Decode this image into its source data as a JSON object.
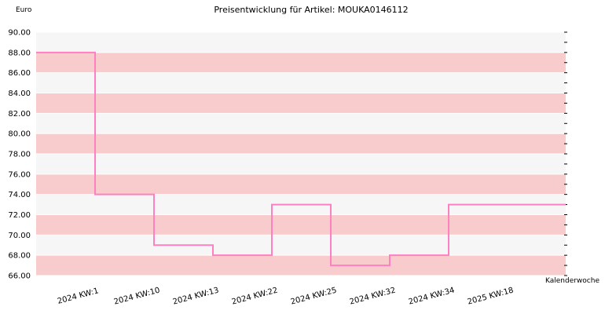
{
  "chart_data": {
    "type": "line",
    "step": true,
    "title": "Preisentwicklung für Artikel: MOUKA0146112",
    "ylabel": "Euro",
    "xlabel": "Kalenderwoche",
    "ylim": [
      66,
      90
    ],
    "ystep": 2,
    "ytick_labels": [
      "66.00",
      "68.00",
      "70.00",
      "72.00",
      "74.00",
      "76.00",
      "78.00",
      "80.00",
      "82.00",
      "84.00",
      "86.00",
      "88.00",
      "90.00"
    ],
    "categories": [
      "2024 KW:1",
      "2024 KW:10",
      "2024 KW:13",
      "2024 KW:22",
      "2024 KW:25",
      "2024 KW:32",
      "2024 KW:34",
      "2025 KW:18"
    ],
    "series": [
      {
        "values": [
          88,
          74,
          69,
          68,
          73,
          67,
          68,
          73
        ]
      }
    ],
    "colors": {
      "line": "#ff80c0",
      "band_a": "#f8cccc",
      "band_b": "#f6f6f6",
      "grid": "#ffffff",
      "axis": "#000000"
    },
    "grid": true,
    "legend": false
  }
}
